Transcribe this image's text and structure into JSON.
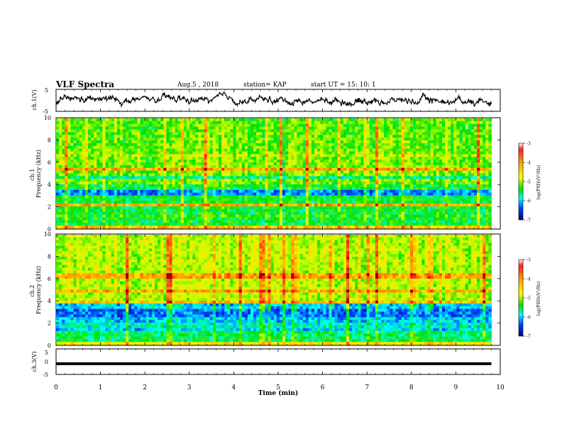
{
  "header": {
    "title": "VLF Spectra",
    "date": "Aug.5 , 2018",
    "station": "station= KAP",
    "start": "start  UT  =   15: 10: 1"
  },
  "chart_data": [
    {
      "type": "line",
      "panel": "ch1-waveform",
      "ylabel": "ch.1(V)",
      "ylim": [
        -5,
        5
      ],
      "yticks": [
        "5",
        "-5"
      ],
      "xlim": [
        0,
        10
      ],
      "note": "noisy voltage trace, mostly between -3 and +3 V",
      "approx_envelope": [
        -3,
        3
      ]
    },
    {
      "type": "heatmap",
      "panel": "ch1-spectrogram",
      "ylabel": "ch.1\nFrequency  (kHz)",
      "ylim": [
        0,
        10
      ],
      "yticks": [
        "0",
        "2",
        "4",
        "6",
        "8",
        "10"
      ],
      "xlim": [
        0,
        9.8
      ],
      "colorbar": {
        "label": "log(PSD)(V²/Hz)",
        "ticks": [
          "-3",
          "-4",
          "-5",
          "-6",
          "-7"
        ],
        "range": [
          -7,
          -3
        ]
      },
      "horizontal_bands_khz": [
        {
          "from": 0.0,
          "to": 0.3,
          "level": -4.2
        },
        {
          "from": 1.0,
          "to": 1.3,
          "level": -5.2
        },
        {
          "from": 2.1,
          "to": 2.3,
          "level": -4.0
        },
        {
          "from": 3.0,
          "to": 3.6,
          "level": -6.2
        },
        {
          "from": 4.4,
          "to": 4.7,
          "level": -5.7
        },
        {
          "from": 5.2,
          "to": 5.4,
          "level": -4.0
        },
        {
          "from": 6.6,
          "to": 6.8,
          "level": -4.8
        }
      ]
    },
    {
      "type": "heatmap",
      "panel": "ch2-spectrogram",
      "ylabel": "ch.2\nFrequency  (kHz)",
      "ylim": [
        0,
        10
      ],
      "yticks": [
        "0",
        "2",
        "4",
        "6",
        "8",
        "10"
      ],
      "xlim": [
        0,
        9.8
      ],
      "colorbar": {
        "label": "log(PSD)(V²/Hz)",
        "ticks": [
          "-3",
          "-4",
          "-5",
          "-6",
          "-7"
        ],
        "range": [
          -7,
          -3
        ]
      },
      "horizontal_bands_khz": [
        {
          "from": 0.0,
          "to": 0.3,
          "level": -4.5
        },
        {
          "from": 1.6,
          "to": 2.0,
          "level": -5.8
        },
        {
          "from": 2.5,
          "to": 3.3,
          "level": -6.3
        },
        {
          "from": 3.8,
          "to": 4.0,
          "level": -4.2
        },
        {
          "from": 4.8,
          "to": 5.0,
          "level": -4.0
        },
        {
          "from": 6.0,
          "to": 6.4,
          "level": -4.0
        }
      ]
    },
    {
      "type": "line",
      "panel": "ch3-waveform",
      "ylabel": "ch.3(V)",
      "ylim": [
        -5,
        5
      ],
      "yticks": [
        "5",
        "0",
        "-5"
      ],
      "xlim": [
        0,
        10
      ],
      "xlabel": "Time  (min)",
      "xticks": [
        "0",
        "1",
        "2",
        "3",
        "4",
        "5",
        "6",
        "7",
        "8",
        "9",
        "10"
      ],
      "x": [
        0,
        9.8
      ],
      "y": [
        -0.8,
        -0.8
      ]
    }
  ]
}
